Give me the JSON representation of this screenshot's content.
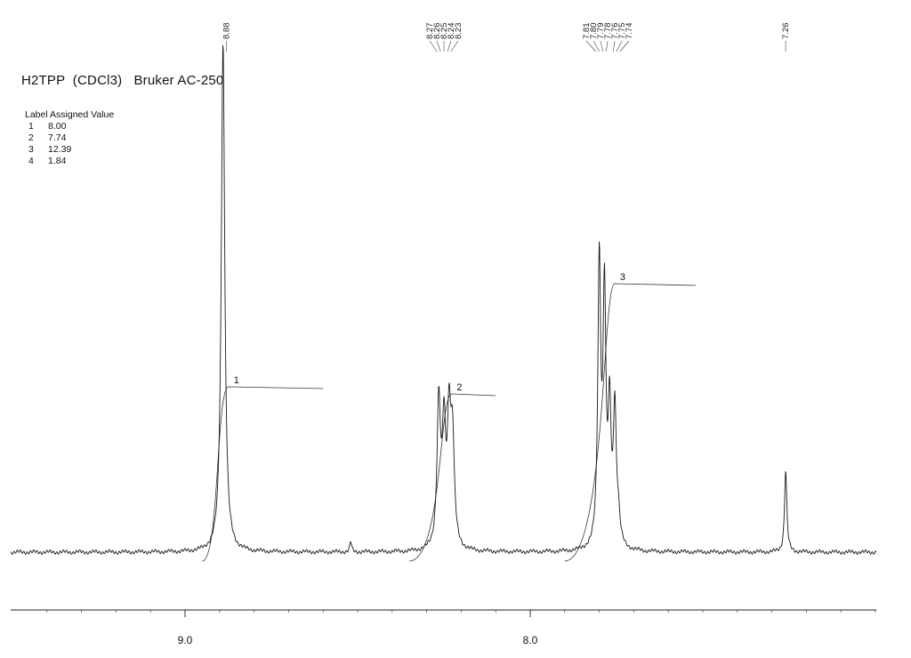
{
  "header": {
    "title": "H2TPP  (CDCl3)   Bruker AC-250"
  },
  "integral_table": {
    "header": "Label Assigned Value",
    "rows": [
      {
        "label": "1",
        "value": "8.00"
      },
      {
        "label": "2",
        "value": "7.74"
      },
      {
        "label": "3",
        "value": "12.39"
      },
      {
        "label": "4",
        "value": "1.84"
      }
    ]
  },
  "chart_data": {
    "type": "line",
    "title": "H2TPP  (CDCl3)   Bruker AC-250",
    "xlabel": "",
    "ylabel": "",
    "x_axis_reversed": true,
    "xlim": [
      9.5,
      7.0
    ],
    "x_ticks": [
      {
        "value": 9.0,
        "label": "9.0"
      },
      {
        "value": 8.0,
        "label": "8.0"
      }
    ],
    "grid": false,
    "peak_labels": [
      {
        "group": "a",
        "ppm": 8.88,
        "label": "8.88"
      },
      {
        "group": "b",
        "ppm": 8.27,
        "label": "8.27"
      },
      {
        "group": "b",
        "ppm": 8.26,
        "label": "8.26"
      },
      {
        "group": "b",
        "ppm": 8.25,
        "label": "8.25"
      },
      {
        "group": "b",
        "ppm": 8.24,
        "label": "8.24"
      },
      {
        "group": "b",
        "ppm": 8.23,
        "label": "8.23"
      },
      {
        "group": "c",
        "ppm": 7.81,
        "label": "7.81"
      },
      {
        "group": "c",
        "ppm": 7.8,
        "label": "7.80"
      },
      {
        "group": "c",
        "ppm": 7.79,
        "label": "7.79"
      },
      {
        "group": "c",
        "ppm": 7.78,
        "label": "7.78"
      },
      {
        "group": "c",
        "ppm": 7.76,
        "label": "7.76"
      },
      {
        "group": "c",
        "ppm": 7.75,
        "label": "7.75"
      },
      {
        "group": "c",
        "ppm": 7.74,
        "label": "7.74"
      },
      {
        "group": "d",
        "ppm": 7.26,
        "label": "7.26"
      }
    ],
    "peaks": [
      {
        "ppm": 8.89,
        "intensity": 1.0,
        "width": 0.006
      },
      {
        "ppm": 8.265,
        "intensity": 0.28,
        "width": 0.006
      },
      {
        "ppm": 8.25,
        "intensity": 0.22,
        "width": 0.006
      },
      {
        "ppm": 8.235,
        "intensity": 0.24,
        "width": 0.006
      },
      {
        "ppm": 8.225,
        "intensity": 0.2,
        "width": 0.006
      },
      {
        "ppm": 7.8,
        "intensity": 0.55,
        "width": 0.005
      },
      {
        "ppm": 7.785,
        "intensity": 0.48,
        "width": 0.005
      },
      {
        "ppm": 7.77,
        "intensity": 0.25,
        "width": 0.005
      },
      {
        "ppm": 7.755,
        "intensity": 0.26,
        "width": 0.005
      },
      {
        "ppm": 7.745,
        "intensity": 0.05,
        "width": 0.006
      },
      {
        "ppm": 7.26,
        "intensity": 0.16,
        "width": 0.004
      },
      {
        "ppm": 8.52,
        "intensity": 0.02,
        "width": 0.003
      }
    ],
    "integrals": [
      {
        "label": "1",
        "from": 8.95,
        "to": 8.6,
        "value": "8.00"
      },
      {
        "label": "2",
        "from": 8.35,
        "to": 8.1,
        "value": "7.74"
      },
      {
        "label": "3",
        "from": 7.9,
        "to": 7.52,
        "value": "12.39"
      }
    ]
  }
}
